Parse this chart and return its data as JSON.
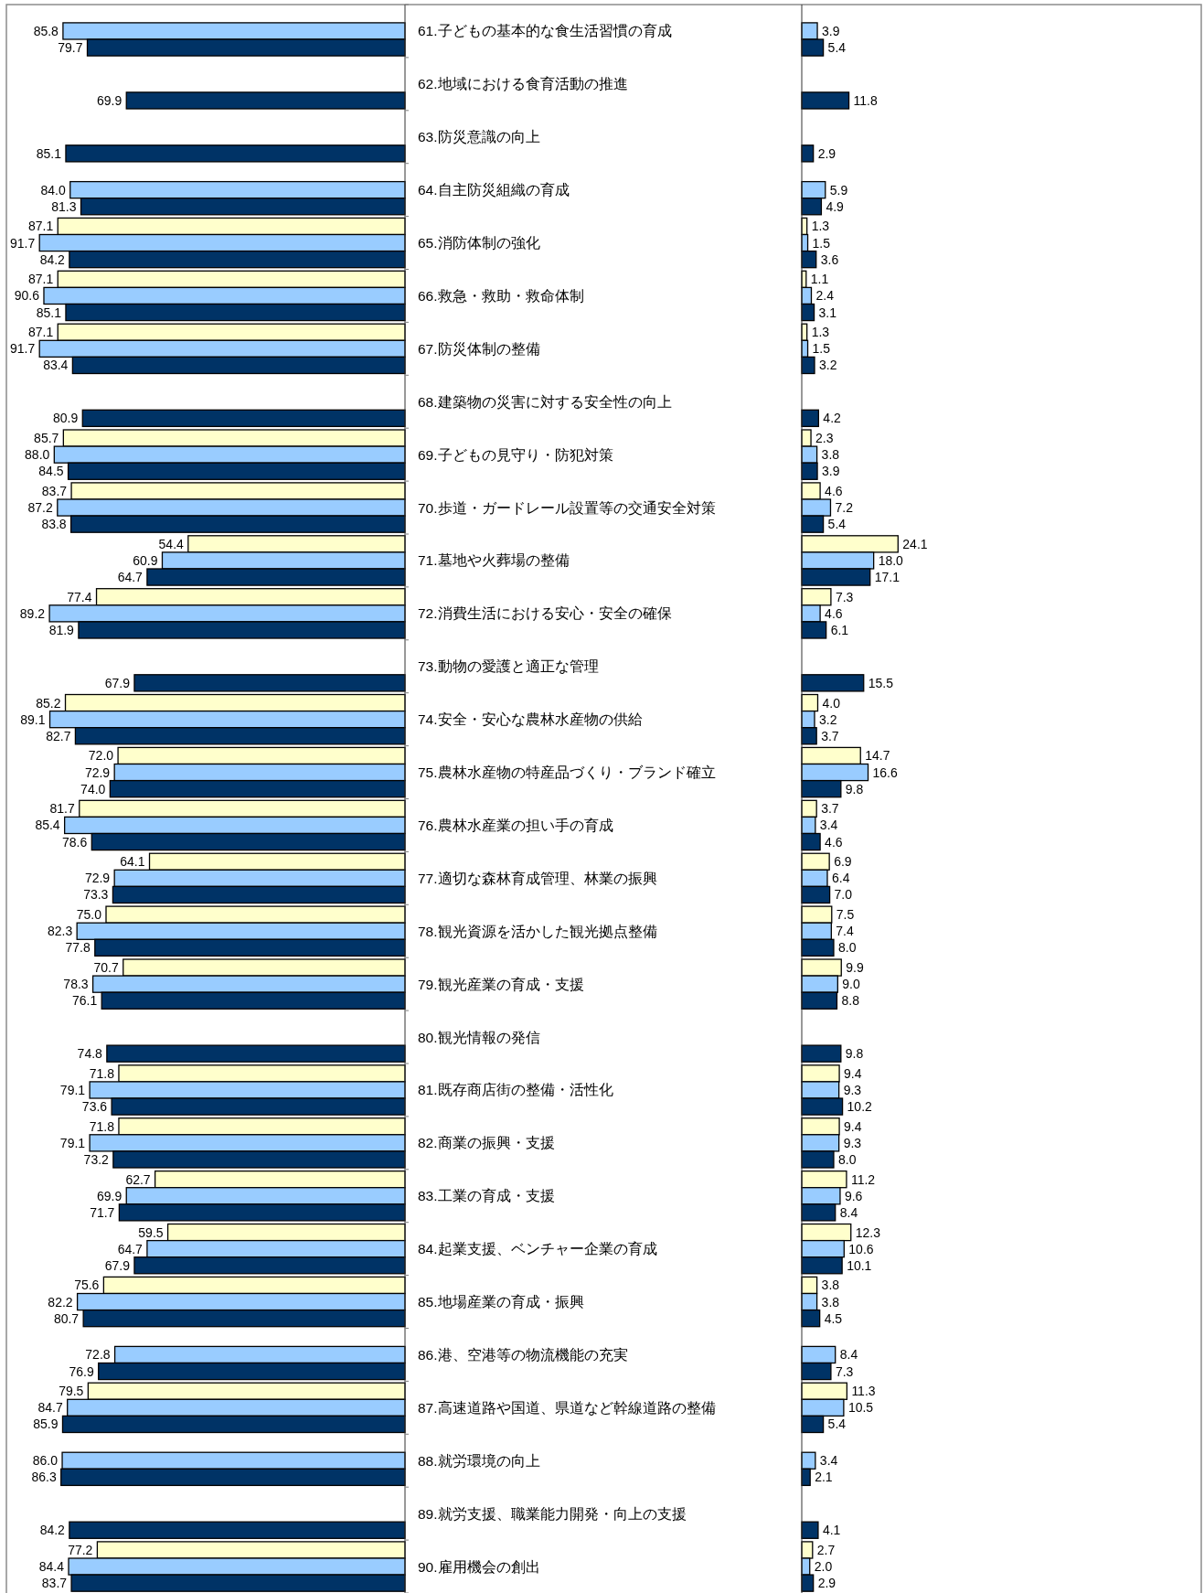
{
  "chart_data": [
    {
      "type": "bar",
      "orientation": "horizontal",
      "tick_labels": "y",
      "xlim": [
        100,
        0
      ],
      "categories": [
        "61.子どもの基本的な食生活習慣の育成",
        "62.地域における食育活動の推進",
        "63.防災意識の向上",
        "64.自主防災組織の育成",
        "65.消防体制の強化",
        "66.救急・救助・救命体制",
        "67.防災体制の整備",
        "68.建築物の災害に対する安全性の向上",
        "69.子どもの見守り・防犯対策",
        "70.歩道・ガードレール設置等の交通安全対策",
        "71.墓地や火葬場の整備",
        "72.消費生活における安心・安全の確保",
        "73.動物の愛護と適正な管理",
        "74.安全・安心な農林水産物の供給",
        "75.農林水産物の特産品づくり・ブランド確立",
        "76.農林水産業の担い手の育成",
        "77.適切な森林育成管理、林業の振興",
        "78.観光資源を活かした観光拠点整備",
        "79.観光産業の育成・支援",
        "80.観光情報の発信",
        "81.既存商店街の整備・活性化",
        "82.商業の振興・支援",
        "83.工業の育成・支援",
        "84.起業支援、ベンチャー企業の育成",
        "85.地場産業の育成・振興",
        "86.港、空港等の物流機能の充実",
        "87.高速道路や国道、県道など幹線道路の整備",
        "88.就労環境の向上",
        "89.就労支援、職業能力開発・向上の支援",
        "90.雇用機会の創出"
      ],
      "series": [
        {
          "color": "#ffffcc",
          "values": [
            null,
            null,
            null,
            null,
            87.1,
            87.1,
            87.1,
            null,
            85.7,
            83.7,
            54.4,
            77.4,
            null,
            85.2,
            72.0,
            81.7,
            64.1,
            75.0,
            70.7,
            null,
            71.8,
            71.8,
            62.7,
            59.5,
            75.6,
            null,
            79.5,
            null,
            null,
            77.2
          ],
          "value_labels": [
            null,
            null,
            null,
            null,
            "87.1",
            "87.1",
            "87.1",
            null,
            "85.7",
            "83.7",
            "54.4",
            "77.4",
            null,
            "85.2",
            "72.0",
            "81.7",
            "64.1",
            "75.0",
            "70.7",
            null,
            "71.8",
            "71.8",
            "62.7",
            "59.5",
            "75.6",
            null,
            "79.5",
            null,
            null,
            "77.2"
          ]
        },
        {
          "color": "#99ccff",
          "values": [
            85.8,
            null,
            null,
            84.0,
            91.7,
            90.6,
            91.7,
            null,
            88.0,
            87.2,
            60.9,
            89.2,
            null,
            89.1,
            72.9,
            85.4,
            72.9,
            82.3,
            78.3,
            null,
            79.1,
            79.1,
            69.9,
            64.7,
            82.2,
            72.8,
            84.7,
            86.0,
            null,
            84.4
          ],
          "value_labels": [
            "85.8",
            null,
            null,
            "84.0",
            "91.7",
            "90.6",
            "91.7",
            null,
            "88.0",
            "87.2",
            "60.9",
            "89.2",
            null,
            "89.1",
            "72.9",
            "85.4",
            "72.9",
            "82.3",
            "78.3",
            null,
            "79.1",
            "79.1",
            "69.9",
            "64.7",
            "82.2",
            "72.8",
            "84.7",
            "86.0",
            null,
            "84.4"
          ]
        },
        {
          "color": "#003366",
          "values": [
            79.7,
            69.9,
            85.1,
            81.3,
            84.2,
            85.1,
            83.4,
            80.9,
            84.5,
            83.8,
            64.7,
            81.9,
            67.9,
            82.7,
            74.0,
            78.6,
            73.3,
            77.8,
            76.1,
            74.8,
            73.6,
            73.2,
            71.7,
            67.9,
            80.7,
            76.9,
            85.9,
            86.3,
            84.2,
            83.7
          ],
          "value_labels": [
            "79.7",
            "69.9",
            "85.1",
            "81.3",
            "84.2",
            "85.1",
            "83.4",
            "80.9",
            "84.5",
            "83.8",
            "64.7",
            "81.9",
            "67.9",
            "82.7",
            "74.0",
            "78.6",
            "73.3",
            "77.8",
            "76.1",
            "74.8",
            "73.6",
            "73.2",
            "71.7",
            "67.9",
            "80.7",
            "76.9",
            "85.9",
            "86.3",
            "84.2",
            "83.7"
          ]
        }
      ]
    },
    {
      "type": "bar",
      "orientation": "horizontal",
      "tick_labels": false,
      "xlim": [
        0,
        100
      ],
      "categories": [
        null,
        null,
        null,
        null,
        null,
        null,
        null,
        null,
        null,
        null,
        null,
        null,
        null,
        null,
        null,
        null,
        null,
        null,
        null,
        null,
        null,
        null,
        null,
        null,
        null,
        null,
        null,
        null,
        null,
        null
      ],
      "series": [
        {
          "color": "#ffffcc",
          "values": [
            null,
            null,
            null,
            null,
            1.3,
            1.1,
            1.3,
            null,
            2.3,
            4.6,
            24.1,
            7.3,
            null,
            4.0,
            14.7,
            3.7,
            6.9,
            7.5,
            9.9,
            null,
            9.4,
            9.4,
            11.2,
            12.3,
            3.8,
            null,
            11.3,
            null,
            null,
            2.7
          ],
          "value_labels": [
            null,
            null,
            null,
            null,
            "1.3",
            "1.1",
            "1.3",
            null,
            "2.3",
            "4.6",
            "24.1",
            "7.3",
            null,
            "4.0",
            "14.7",
            "3.7",
            "6.9",
            "7.5",
            "9.9",
            null,
            "9.4",
            "9.4",
            "11.2",
            "12.3",
            "3.8",
            null,
            "11.3",
            null,
            null,
            "2.7"
          ]
        },
        {
          "color": "#99ccff",
          "values": [
            3.9,
            null,
            null,
            5.9,
            1.5,
            2.4,
            1.5,
            null,
            3.8,
            7.2,
            18.0,
            4.6,
            null,
            3.2,
            16.6,
            3.4,
            6.4,
            7.4,
            9.0,
            null,
            9.3,
            9.3,
            9.6,
            10.6,
            3.8,
            8.4,
            10.5,
            3.4,
            null,
            2.0
          ],
          "value_labels": [
            "3.9",
            null,
            null,
            "5.9",
            "1.5",
            "2.4",
            "1.5",
            null,
            "3.8",
            "7.2",
            "18.0",
            "4.6",
            null,
            "3.2",
            "16.6",
            "3.4",
            "6.4",
            "7.4",
            "9.0",
            null,
            "9.3",
            "9.3",
            "9.6",
            "10.6",
            "3.8",
            "8.4",
            "10.5",
            "3.4",
            null,
            "2.0"
          ]
        },
        {
          "color": "#003366",
          "values": [
            5.4,
            11.8,
            2.9,
            4.9,
            3.6,
            3.1,
            3.2,
            4.2,
            3.9,
            5.4,
            17.1,
            6.1,
            15.5,
            3.7,
            9.8,
            4.6,
            7.0,
            8.0,
            8.8,
            9.8,
            10.2,
            8.0,
            8.4,
            10.1,
            4.5,
            7.3,
            5.4,
            2.1,
            4.1,
            2.9
          ],
          "value_labels": [
            "5.4",
            "11.8",
            "2.9",
            "4.9",
            "3.6",
            "3.1",
            "3.2",
            "4.2",
            "3.9",
            "5.4",
            "17.1",
            "6.1",
            "15.5",
            "3.7",
            "9.8",
            "4.6",
            "7.0",
            "8.0",
            "8.8",
            "9.8",
            "10.2",
            "8.0",
            "8.4",
            "10.1",
            "4.5",
            "7.3",
            "5.4",
            "2.1",
            "4.1",
            "2.9"
          ]
        }
      ]
    }
  ]
}
